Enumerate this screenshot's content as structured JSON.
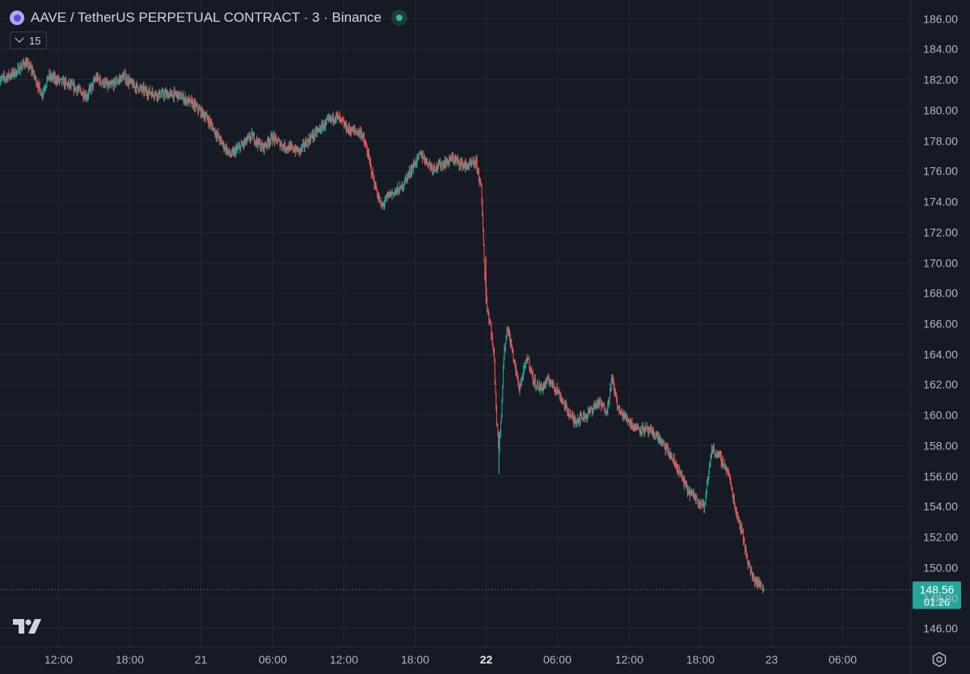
{
  "header": {
    "title": "AAVE / TetherUS PERPETUAL CONTRACT · 3 · Binance",
    "status": "live"
  },
  "toolbar": {
    "interval_value": "15"
  },
  "colors": {
    "background": "#161a25",
    "grid": "#232733",
    "up": "#26a69a",
    "down": "#ef5350",
    "price_line": "#26a69a",
    "text": "#d1d4dc"
  },
  "chart_data": {
    "type": "candlestick",
    "symbol": "AAVE / TetherUS PERPETUAL CONTRACT",
    "interval": "3",
    "exchange": "Binance",
    "ylim": [
      144.8,
      187.2
    ],
    "y_ticks": [
      "186.00",
      "184.00",
      "182.00",
      "180.00",
      "178.00",
      "176.00",
      "174.00",
      "172.00",
      "170.00",
      "168.00",
      "166.00",
      "164.00",
      "162.00",
      "160.00",
      "158.00",
      "156.00",
      "154.00",
      "152.00",
      "150.00",
      "148.00",
      "146.00"
    ],
    "x_ticks": [
      {
        "label": "12:00",
        "hours": 12,
        "bold": false
      },
      {
        "label": "18:00",
        "hours": 18,
        "bold": false
      },
      {
        "label": "21",
        "hours": 24,
        "bold": false
      },
      {
        "label": "06:00",
        "hours": 30,
        "bold": false
      },
      {
        "label": "12:00",
        "hours": 36,
        "bold": false
      },
      {
        "label": "18:00",
        "hours": 42,
        "bold": false
      },
      {
        "label": "22",
        "hours": 48,
        "bold": true
      },
      {
        "label": "06:00",
        "hours": 54,
        "bold": false
      },
      {
        "label": "12:00",
        "hours": 60,
        "bold": false
      },
      {
        "label": "18:00",
        "hours": 66,
        "bold": false
      },
      {
        "label": "23",
        "hours": 72,
        "bold": false
      },
      {
        "label": "06:00",
        "hours": 78,
        "bold": false
      }
    ],
    "price_path": [
      [
        7.0,
        181.9
      ],
      [
        8.5,
        182.5
      ],
      [
        9.2,
        183.1
      ],
      [
        9.8,
        182.6
      ],
      [
        10.6,
        181.0
      ],
      [
        11.2,
        182.2
      ],
      [
        12.4,
        181.8
      ],
      [
        13.5,
        181.4
      ],
      [
        14.4,
        180.9
      ],
      [
        15.2,
        182.1
      ],
      [
        16.3,
        181.5
      ],
      [
        17.5,
        182.2
      ],
      [
        18.3,
        181.6
      ],
      [
        19.4,
        181.2
      ],
      [
        20.5,
        181.0
      ],
      [
        22.0,
        181.0
      ],
      [
        23.3,
        180.4
      ],
      [
        24.5,
        179.5
      ],
      [
        25.7,
        177.9
      ],
      [
        26.5,
        177.0
      ],
      [
        27.5,
        177.7
      ],
      [
        28.3,
        178.3
      ],
      [
        29.2,
        177.5
      ],
      [
        30.0,
        178.2
      ],
      [
        31.0,
        177.6
      ],
      [
        32.3,
        177.3
      ],
      [
        33.3,
        178.2
      ],
      [
        34.5,
        179.1
      ],
      [
        35.4,
        179.6
      ],
      [
        36.4,
        178.7
      ],
      [
        37.5,
        178.5
      ],
      [
        38.0,
        177.3
      ],
      [
        38.6,
        175.2
      ],
      [
        39.2,
        173.6
      ],
      [
        39.8,
        174.4
      ],
      [
        40.8,
        174.8
      ],
      [
        41.8,
        176.2
      ],
      [
        42.5,
        177.1
      ],
      [
        43.5,
        176.2
      ],
      [
        44.3,
        176.4
      ],
      [
        45.2,
        176.8
      ],
      [
        46.3,
        176.3
      ],
      [
        47.2,
        176.5
      ],
      [
        47.6,
        174.8
      ],
      [
        47.8,
        171.2
      ],
      [
        47.9,
        169.2
      ],
      [
        48.1,
        167.0
      ],
      [
        48.4,
        165.8
      ],
      [
        48.7,
        163.5
      ],
      [
        48.9,
        159.5
      ],
      [
        49.1,
        157.8
      ],
      [
        49.3,
        160.2
      ],
      [
        49.5,
        163.8
      ],
      [
        49.8,
        165.8
      ],
      [
        50.3,
        163.8
      ],
      [
        50.8,
        161.7
      ],
      [
        51.5,
        163.8
      ],
      [
        52.0,
        162.2
      ],
      [
        52.6,
        161.7
      ],
      [
        53.3,
        162.3
      ],
      [
        54.0,
        161.6
      ],
      [
        54.7,
        160.5
      ],
      [
        55.4,
        159.6
      ],
      [
        56.5,
        160.0
      ],
      [
        57.4,
        160.8
      ],
      [
        58.2,
        160.3
      ],
      [
        58.6,
        162.4
      ],
      [
        59.2,
        160.2
      ],
      [
        59.8,
        159.8
      ],
      [
        60.5,
        159.2
      ],
      [
        61.5,
        159.0
      ],
      [
        62.4,
        158.6
      ],
      [
        63.4,
        157.5
      ],
      [
        64.3,
        156.2
      ],
      [
        65.0,
        155.0
      ],
      [
        65.6,
        154.6
      ],
      [
        66.4,
        154.0
      ],
      [
        67.0,
        157.8
      ],
      [
        67.7,
        157.2
      ],
      [
        68.4,
        156.2
      ],
      [
        69.0,
        153.8
      ],
      [
        69.5,
        152.5
      ],
      [
        70.0,
        150.5
      ],
      [
        70.4,
        149.4
      ],
      [
        70.8,
        149.0
      ],
      [
        71.2,
        148.8
      ],
      [
        71.4,
        148.56
      ]
    ],
    "sample_seed": 7,
    "last_price": {
      "value": "148.56",
      "countdown": "01:26"
    }
  }
}
